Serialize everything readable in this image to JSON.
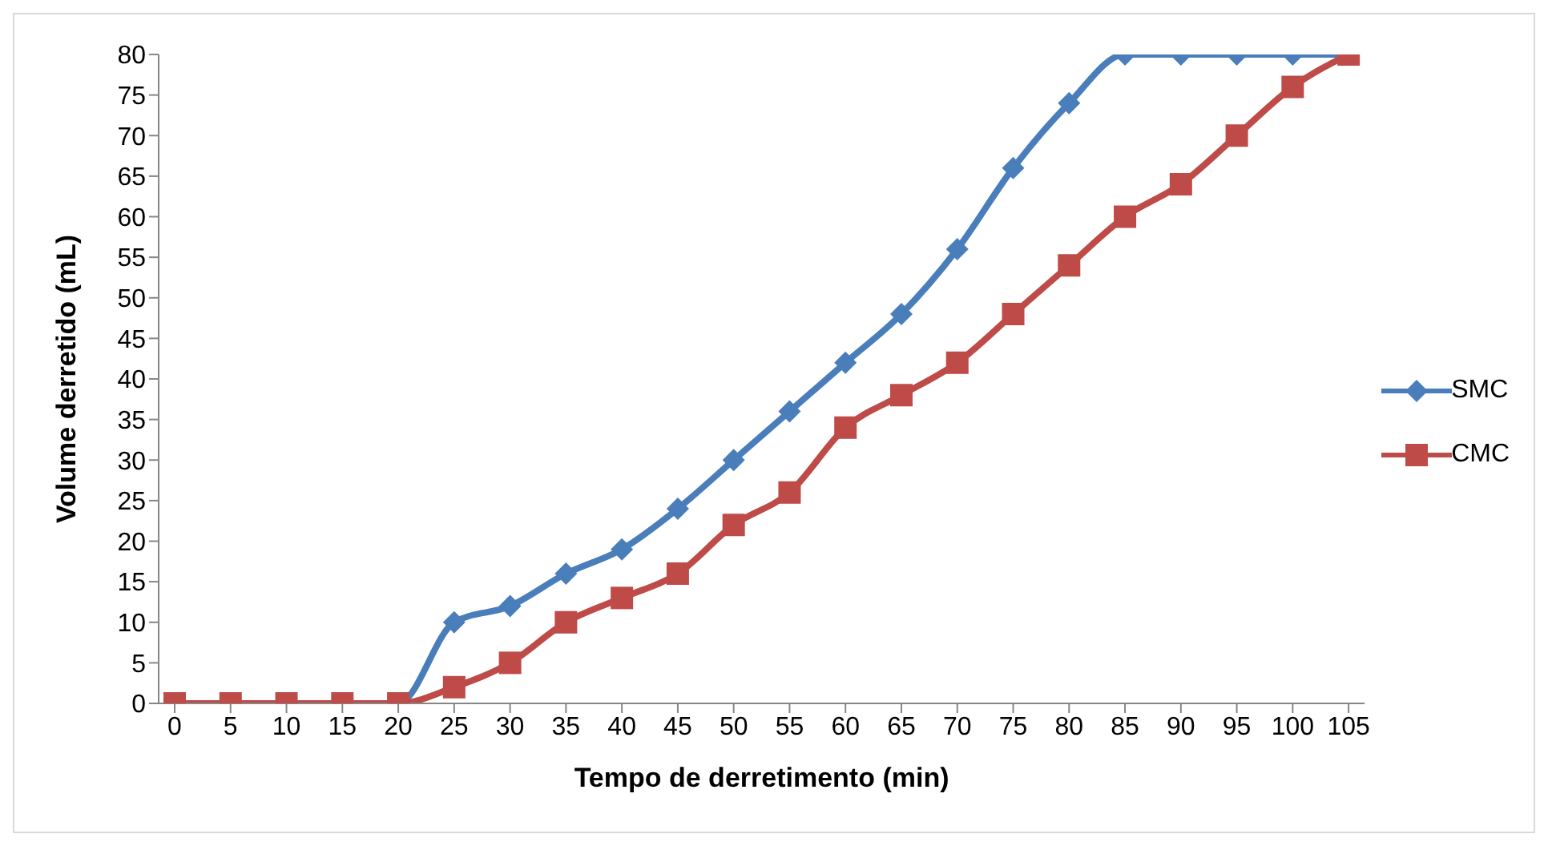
{
  "chart_data": {
    "type": "line",
    "xlabel": "Tempo de derretimento (min)",
    "ylabel": "Volume derretido (mL)",
    "categories": [
      "0",
      "5",
      "10",
      "15",
      "20",
      "25",
      "30",
      "35",
      "40",
      "45",
      "50",
      "55",
      "60",
      "65",
      "70",
      "75",
      "80",
      "85",
      "90",
      "95",
      "100",
      "105"
    ],
    "series": [
      {
        "name": "SMC",
        "color": "#4a7ebb",
        "marker": "diamond",
        "values": [
          null,
          null,
          null,
          0,
          0,
          10,
          12,
          16,
          19,
          24,
          30,
          36,
          42,
          48,
          56,
          66,
          74,
          80,
          80,
          80,
          80,
          80
        ]
      },
      {
        "name": "CMC",
        "color": "#be4b48",
        "marker": "square",
        "values": [
          0,
          0,
          0,
          0,
          0,
          2,
          5,
          10,
          13,
          16,
          22,
          26,
          34,
          38,
          42,
          48,
          54,
          60,
          64,
          70,
          76,
          80
        ]
      }
    ],
    "ylim": [
      0,
      80
    ],
    "yticks": [
      0,
      5,
      10,
      15,
      20,
      25,
      30,
      35,
      40,
      45,
      50,
      55,
      60,
      65,
      70,
      75,
      80
    ],
    "grid": false,
    "legend": "right",
    "line_style": "solid"
  }
}
